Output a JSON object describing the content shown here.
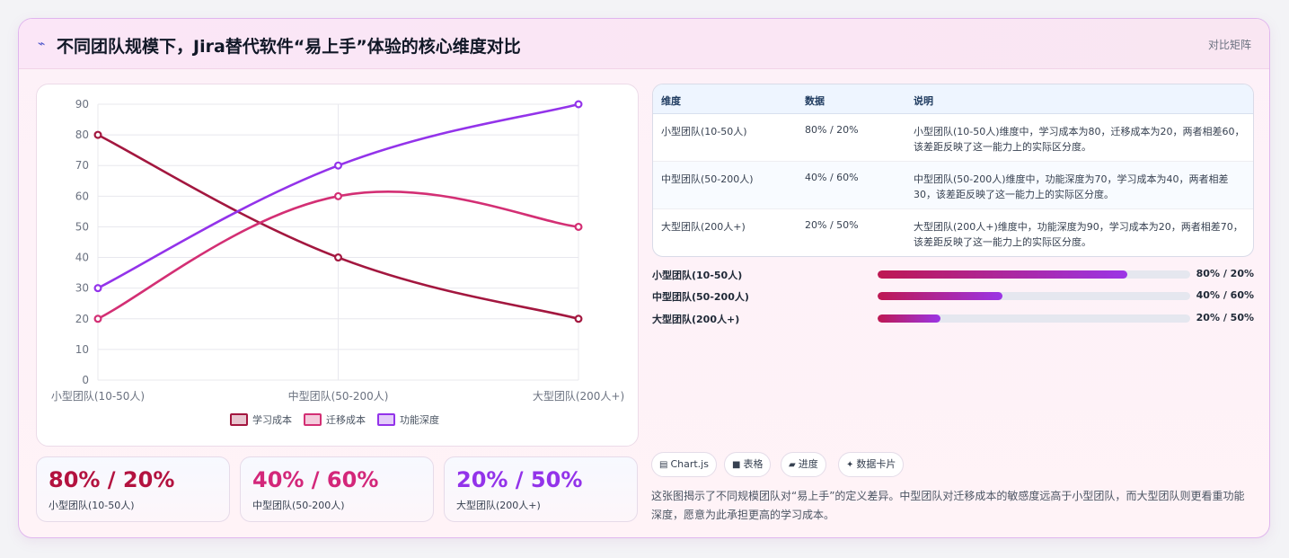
{
  "header": {
    "icon": "sparkle-icon",
    "title": "不同团队规模下，Jira替代软件“易上手”体验的核心维度对比",
    "tag": "对比矩阵"
  },
  "chart_data": {
    "type": "line",
    "categories": [
      "小型团队(10-50人)",
      "中型团队(50-200人)",
      "大型团队(200人+)"
    ],
    "series": [
      {
        "name": "学习成本",
        "values": [
          80,
          40,
          20
        ],
        "color": "#a3173f"
      },
      {
        "name": "迁移成本",
        "values": [
          20,
          60,
          50
        ],
        "color": "#d32f74"
      },
      {
        "name": "功能深度",
        "values": [
          30,
          70,
          90
        ],
        "color": "#9333ea"
      }
    ],
    "ylim": [
      0,
      90
    ],
    "yticks": [
      0,
      10,
      20,
      30,
      40,
      50,
      60,
      70,
      80,
      90
    ],
    "grid": true,
    "legend_position": "bottom"
  },
  "kpis": [
    {
      "value": "80% / 20%",
      "label": "小型团队(10-50人)",
      "color": "#b3123f"
    },
    {
      "value": "40% / 60%",
      "label": "中型团队(50-200人)",
      "color": "#d3277a"
    },
    {
      "value": "20% / 50%",
      "label": "大型团队(200人+)",
      "color": "#9333ea"
    }
  ],
  "table": {
    "headers": [
      "维度",
      "数据",
      "说明"
    ],
    "rows": [
      {
        "dim": "小型团队(10-50人)",
        "data": "80% / 20%",
        "desc": "小型团队(10-50人)维度中，学习成本为80，迁移成本为20，两者相差60，该差距反映了这一能力上的实际区分度。"
      },
      {
        "dim": "中型团队(50-200人)",
        "data": "40% / 60%",
        "desc": "中型团队(50-200人)维度中，功能深度为70，学习成本为40，两者相差30，该差距反映了这一能力上的实际区分度。"
      },
      {
        "dim": "大型团队(200人+)",
        "data": "20% / 50%",
        "desc": "大型团队(200人+)维度中，功能深度为90，学习成本为20，两者相差70，该差距反映了这一能力上的实际区分度。"
      }
    ]
  },
  "progress": [
    {
      "label": "小型团队(10-50人)",
      "value": "80% / 20%",
      "fraction": 0.8
    },
    {
      "label": "中型团队(50-200人)",
      "value": "40% / 60%",
      "fraction": 0.4
    },
    {
      "label": "大型团队(200人+)",
      "value": "20% / 50%",
      "fraction": 0.2
    }
  ],
  "chips": [
    {
      "icon": "chart-icon",
      "glyph": "▤",
      "label": "Chart.js"
    },
    {
      "icon": "table-icon",
      "glyph": "■",
      "label": "表格"
    },
    {
      "icon": "progress-icon",
      "glyph": "▰",
      "label": "进度"
    },
    {
      "icon": "sparkle-icon",
      "glyph": "✦",
      "label": "数据卡片"
    }
  ],
  "summary": "这张图揭示了不同规模团队对“易上手”的定义差异。中型团队对迁移成本的敏感度远高于小型团队，而大型团队则更看重功能深度，愿意为此承担更高的学习成本。"
}
